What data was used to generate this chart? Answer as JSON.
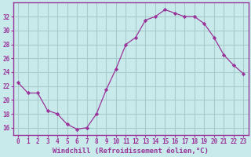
{
  "x": [
    0,
    1,
    2,
    3,
    4,
    5,
    6,
    7,
    8,
    9,
    10,
    11,
    12,
    13,
    14,
    15,
    16,
    17,
    18,
    19,
    20,
    21,
    22,
    23
  ],
  "y": [
    22.5,
    21.0,
    21.0,
    18.5,
    18.0,
    16.5,
    15.8,
    16.0,
    18.0,
    21.5,
    24.5,
    28.0,
    29.0,
    31.5,
    32.0,
    33.0,
    32.5,
    32.0,
    32.0,
    31.0,
    29.0,
    26.5,
    25.0,
    23.8
  ],
  "line_color": "#993399",
  "marker_color": "#993399",
  "bg_color": "#c8eaea",
  "grid_color": "#a8cccc",
  "xlabel": "Windchill (Refroidissement éolien,°C)",
  "xlabel_color": "#993399",
  "tick_color": "#993399",
  "ylim": [
    15,
    34
  ],
  "yticks": [
    16,
    18,
    20,
    22,
    24,
    26,
    28,
    30,
    32
  ],
  "xtick_labels": [
    "0",
    "1",
    "2",
    "3",
    "4",
    "5",
    "6",
    "7",
    "8",
    "9",
    "10",
    "11",
    "12",
    "13",
    "14",
    "15",
    "16",
    "17",
    "18",
    "19",
    "20",
    "21",
    "22",
    "23"
  ],
  "spine_color": "#993399",
  "xlabel_fontsize": 6.5,
  "tick_fontsize": 5.5
}
